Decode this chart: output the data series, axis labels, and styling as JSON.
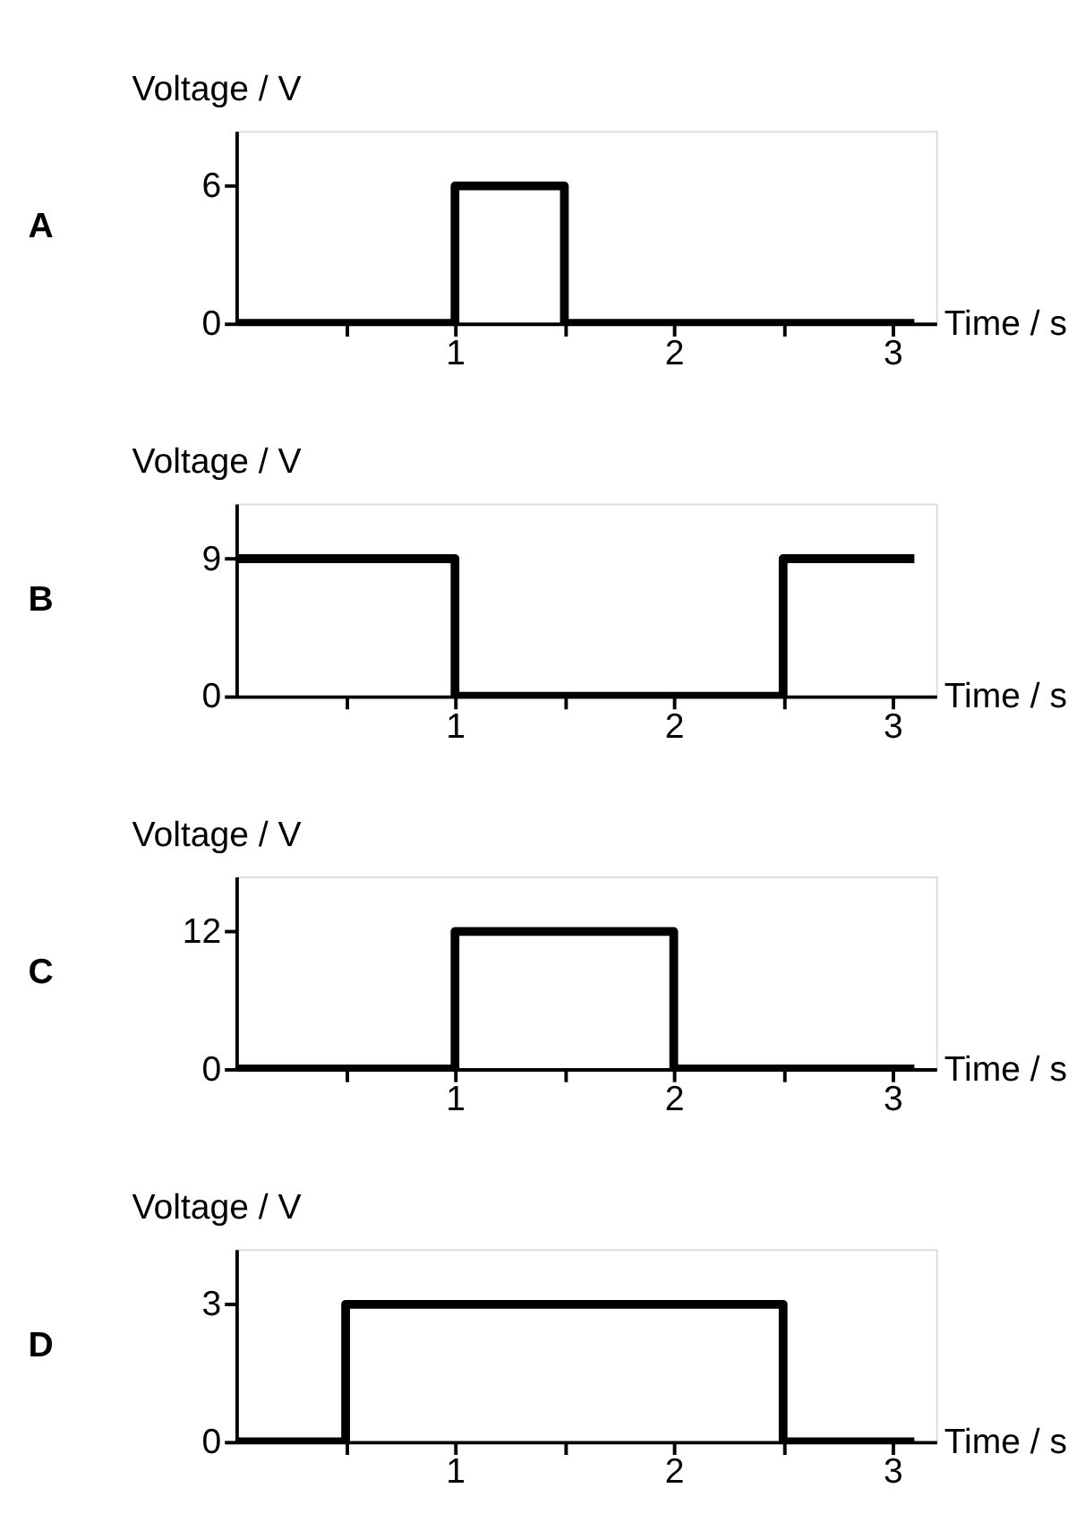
{
  "chart_data": [
    {
      "type": "step",
      "title": "A",
      "xlabel": "Time / s",
      "ylabel": "Voltage / V",
      "x": [
        0,
        1,
        1.5,
        3.1
      ],
      "values": [
        0,
        6,
        0,
        0
      ],
      "color": "#000000",
      "xlim": [
        0,
        3.2
      ],
      "ylim": [
        0,
        8.4
      ],
      "xticks": [
        {
          "value": 0.5,
          "label": null
        },
        1,
        {
          "value": 1.5,
          "label": null
        },
        2,
        {
          "value": 2.5,
          "label": null
        },
        3
      ],
      "yticks": [
        0,
        6
      ],
      "grid": false,
      "line_style": "solid",
      "marker": "none"
    },
    {
      "type": "step",
      "title": "B",
      "xlabel": "Time / s",
      "ylabel": "Voltage / V",
      "x": [
        0,
        1,
        2.5,
        3.1
      ],
      "values": [
        9,
        0,
        9,
        9
      ],
      "color": "#000000",
      "xlim": [
        0,
        3.2
      ],
      "ylim": [
        0,
        12.6
      ],
      "xticks": [
        {
          "value": 0.5,
          "label": null
        },
        1,
        {
          "value": 1.5,
          "label": null
        },
        2,
        {
          "value": 2.5,
          "label": null
        },
        3
      ],
      "yticks": [
        0,
        9
      ],
      "grid": false,
      "line_style": "solid",
      "marker": "none"
    },
    {
      "type": "step",
      "title": "C",
      "xlabel": "Time / s",
      "ylabel": "Voltage / V",
      "x": [
        0,
        1,
        2,
        3.1
      ],
      "values": [
        0,
        12,
        0,
        0
      ],
      "color": "#000000",
      "xlim": [
        0,
        3.2
      ],
      "ylim": [
        0,
        16.8
      ],
      "xticks": [
        {
          "value": 0.5,
          "label": null
        },
        1,
        {
          "value": 1.5,
          "label": null
        },
        2,
        {
          "value": 2.5,
          "label": null
        },
        3
      ],
      "yticks": [
        0,
        12
      ],
      "grid": false,
      "line_style": "solid",
      "marker": "none"
    },
    {
      "type": "step",
      "title": "D",
      "xlabel": "Time / s",
      "ylabel": "Voltage / V",
      "x": [
        0,
        0.5,
        2.5,
        3.1
      ],
      "values": [
        0,
        3,
        0,
        0
      ],
      "color": "#000000",
      "xlim": [
        0,
        3.2
      ],
      "ylim": [
        0,
        4.2
      ],
      "xticks": [
        {
          "value": 0.5,
          "label": null
        },
        1,
        {
          "value": 1.5,
          "label": null
        },
        2,
        {
          "value": 2.5,
          "label": null
        },
        3
      ],
      "yticks": [
        0,
        3
      ],
      "grid": false,
      "line_style": "solid",
      "marker": "none"
    }
  ]
}
